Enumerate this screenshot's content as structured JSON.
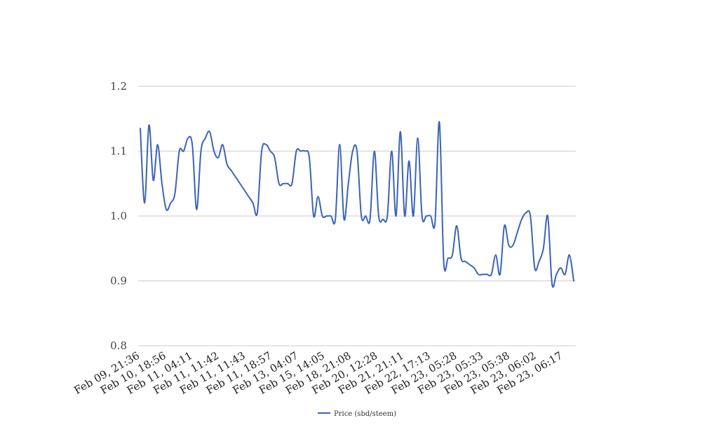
{
  "chart_data": {
    "type": "line",
    "title": "",
    "xlabel": "",
    "ylabel": "",
    "ylim": [
      0.8,
      1.2
    ],
    "yticks": [
      "0.8",
      "0.9",
      "1.0",
      "1.1",
      "1.2"
    ],
    "ytick_values": [
      0.8,
      0.9,
      1.0,
      1.1,
      1.2
    ],
    "grid": true,
    "legend_position": "bottom",
    "x_tick_labels": [
      "Feb 09, 21:36",
      "Feb 10, 18:56",
      "Feb 11, 04:11",
      "Feb 11, 11:42",
      "Feb 11, 11:43",
      "Feb 11, 18:57",
      "Feb 13, 04:07",
      "Feb 15, 14:05",
      "Feb 18, 21:08",
      "Feb 20, 12:28",
      "Feb 21, 21:11",
      "Feb 22, 17:13",
      "Feb 23, 05:28",
      "Feb 23, 05:33",
      "Feb 23, 05:38",
      "Feb 23, 06:02",
      "Feb 23, 06:17"
    ],
    "series": [
      {
        "name": "Price (sbd/steem)",
        "color": "#3a63b8",
        "values": [
          1.135,
          1.02,
          1.14,
          1.055,
          1.11,
          1.05,
          1.01,
          1.02,
          1.035,
          1.1,
          1.1,
          1.12,
          1.11,
          1.01,
          1.1,
          1.12,
          1.13,
          1.1,
          1.09,
          1.11,
          1.08,
          1.07,
          1.06,
          1.05,
          1.04,
          1.03,
          1.02,
          1.005,
          1.1,
          1.11,
          1.1,
          1.09,
          1.05,
          1.05,
          1.05,
          1.05,
          1.1,
          1.1,
          1.1,
          1.09,
          1.0,
          1.03,
          1.0,
          1.0,
          1.0,
          0.995,
          1.11,
          0.995,
          1.05,
          1.1,
          1.1,
          1.0,
          1.0,
          0.995,
          1.1,
          1.0,
          0.995,
          1.0,
          1.1,
          1.0,
          1.13,
          1.0,
          1.085,
          1.0,
          1.12,
          1.0,
          1.0,
          1.0,
          0.99,
          1.145,
          0.93,
          0.935,
          0.94,
          0.985,
          0.935,
          0.93,
          0.925,
          0.92,
          0.91,
          0.91,
          0.91,
          0.91,
          0.94,
          0.91,
          0.985,
          0.955,
          0.955,
          0.975,
          0.995,
          1.005,
          1.0,
          0.92,
          0.93,
          0.95,
          1.0,
          0.895,
          0.91,
          0.92,
          0.91,
          0.94,
          0.9
        ]
      }
    ]
  }
}
